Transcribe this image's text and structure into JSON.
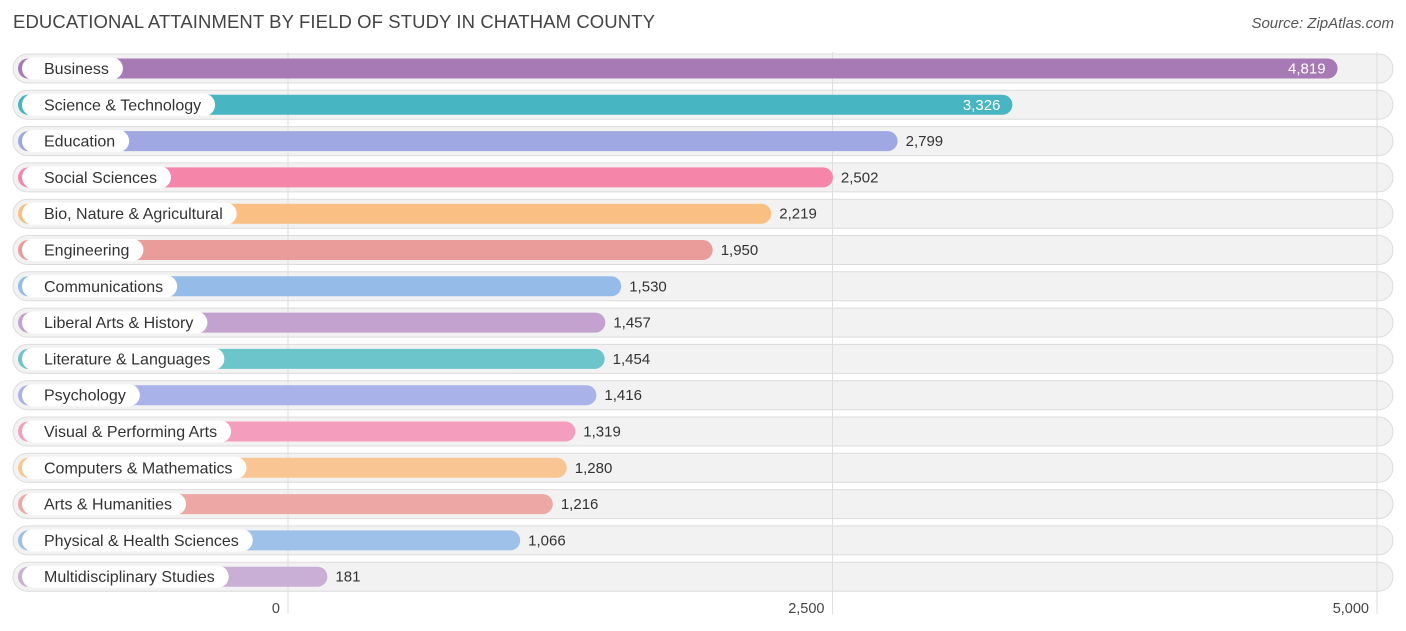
{
  "header": {
    "title": "EDUCATIONAL ATTAINMENT BY FIELD OF STUDY IN CHATHAM COUNTY",
    "source": "Source: ZipAtlas.com"
  },
  "chart_data": {
    "type": "bar",
    "orientation": "horizontal",
    "title": "EDUCATIONAL ATTAINMENT BY FIELD OF STUDY IN CHATHAM COUNTY",
    "xlabel": "",
    "ylabel": "",
    "xlim": [
      0,
      5000
    ],
    "ticks": [
      {
        "value": 0,
        "label": "0"
      },
      {
        "value": 2500,
        "label": "2,500"
      },
      {
        "value": 5000,
        "label": "5,000"
      }
    ],
    "categories": [
      "Business",
      "Science & Technology",
      "Education",
      "Social Sciences",
      "Bio, Nature & Agricultural",
      "Engineering",
      "Communications",
      "Liberal Arts & History",
      "Literature & Languages",
      "Psychology",
      "Visual & Performing Arts",
      "Computers & Mathematics",
      "Arts & Humanities",
      "Physical & Health Sciences",
      "Multidisciplinary Studies"
    ],
    "values": [
      4819,
      3326,
      2799,
      2502,
      2219,
      1950,
      1530,
      1457,
      1454,
      1416,
      1319,
      1280,
      1216,
      1066,
      181
    ],
    "value_labels": [
      "4,819",
      "3,326",
      "2,799",
      "2,502",
      "2,219",
      "1,950",
      "1,530",
      "1,457",
      "1,454",
      "1,416",
      "1,319",
      "1,280",
      "1,216",
      "1,066",
      "181"
    ],
    "colors": [
      "#a87ab5",
      "#47b6c2",
      "#9fa8e2",
      "#f585a9",
      "#f9bf83",
      "#ea9c9a",
      "#95bce8",
      "#c3a2cf",
      "#6cc5cb",
      "#aab2ea",
      "#f59dbc",
      "#f9c593",
      "#eda7a4",
      "#9ec1ea",
      "#c9aed6"
    ],
    "grid": true,
    "legend": "none"
  }
}
